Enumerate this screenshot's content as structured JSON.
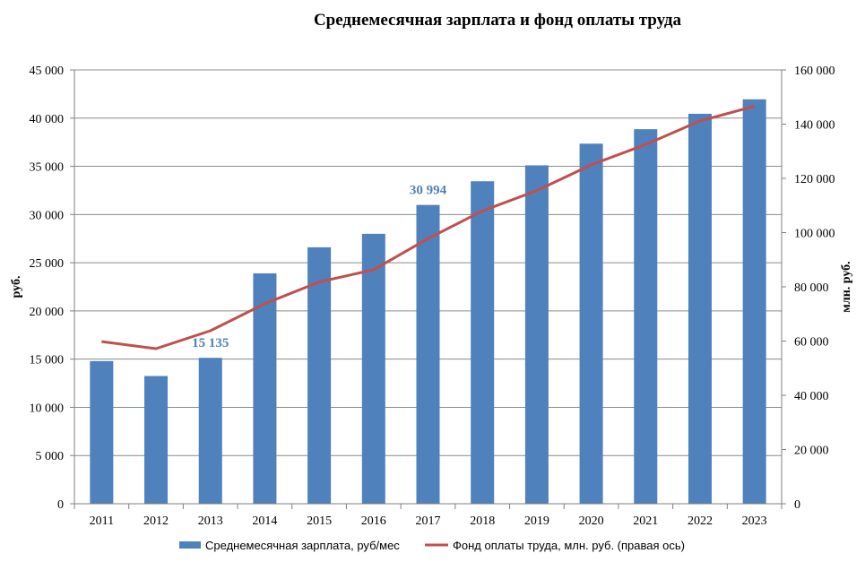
{
  "chart_data": {
    "type": "bar+line",
    "title": "Среднемесячная зарплата  и фонд оплаты труда",
    "categories": [
      "2011",
      "2012",
      "2013",
      "2014",
      "2015",
      "2016",
      "2017",
      "2018",
      "2019",
      "2020",
      "2021",
      "2022",
      "2023"
    ],
    "series": [
      {
        "name": "Среднемесячная зарплата, руб/мес",
        "type": "bar",
        "axis": "left",
        "color": "#4f81bd",
        "values": [
          14800,
          13250,
          15135,
          23900,
          26600,
          28000,
          30994,
          33450,
          35100,
          37350,
          38850,
          40450,
          41950
        ]
      },
      {
        "name": "Фонд  оплаты труда, млн. руб. (правая ось)",
        "type": "line",
        "axis": "right",
        "color": "#c0504d",
        "values": [
          59800,
          57200,
          63800,
          73800,
          81800,
          86300,
          97800,
          108000,
          115500,
          125000,
          132500,
          141200,
          146600
        ]
      }
    ],
    "data_labels": [
      {
        "category": "2013",
        "text": "15 135",
        "color": "#4f81bd"
      },
      {
        "category": "2017",
        "text": "30 994",
        "color": "#4f81bd"
      }
    ],
    "y_left": {
      "label": "руб.",
      "ylim": [
        0,
        45000
      ],
      "ticks": [
        0,
        5000,
        10000,
        15000,
        20000,
        25000,
        30000,
        35000,
        40000,
        45000
      ],
      "tick_labels": [
        "0",
        "5 000",
        "10 000",
        "15 000",
        "20 000",
        "25 000",
        "30 000",
        "35 000",
        "40 000",
        "45 000"
      ]
    },
    "y_right": {
      "label": "млн. руб.",
      "ylim": [
        0,
        160000
      ],
      "ticks": [
        0,
        20000,
        40000,
        60000,
        80000,
        100000,
        120000,
        140000,
        160000
      ],
      "tick_labels": [
        "0",
        "20 000",
        "40 000",
        "60 000",
        "80 000",
        "100 000",
        "120 000",
        "140 000",
        "160 000"
      ]
    },
    "grid": true,
    "gridline_color": "#8c8c8c",
    "legend": "bottom"
  }
}
